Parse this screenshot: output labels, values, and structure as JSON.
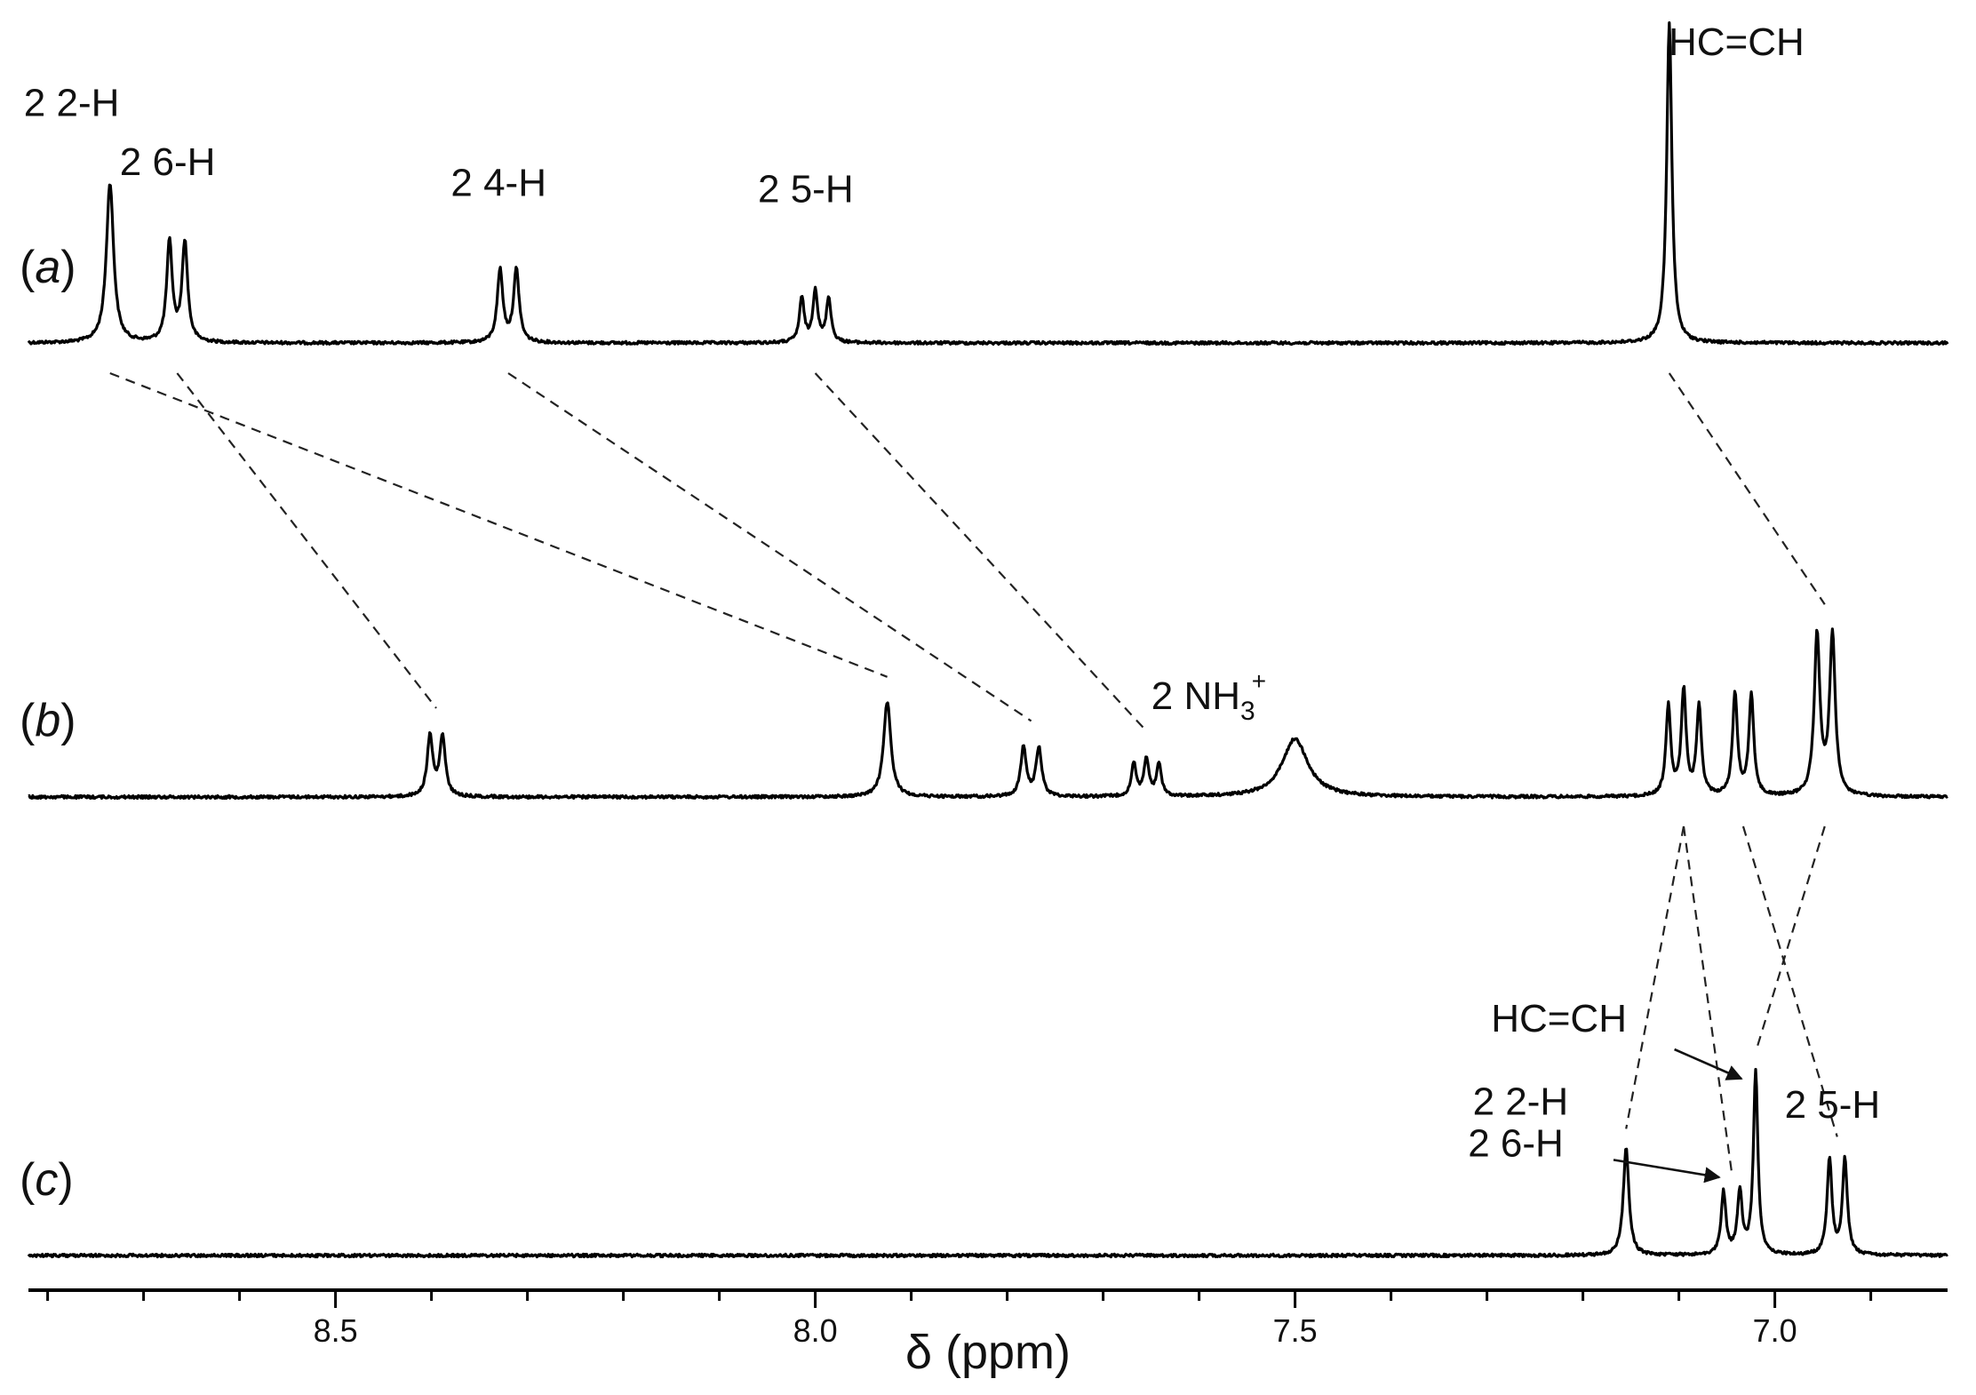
{
  "chart_data": {
    "type": "line",
    "title": "",
    "xlabel": "δ (ppm)",
    "xlim": [
      8.82,
      6.82
    ],
    "x_reversed": true,
    "ticks_major": [
      8.5,
      8.0,
      7.5,
      7.0
    ],
    "tick_labels": [
      "8.5",
      "8.0",
      "7.5",
      "7.0"
    ],
    "panels": [
      {
        "label": "(a)",
        "label_text": "a",
        "peaks": [
          {
            "delta": 8.735,
            "height": 1.0,
            "width": 0.0045,
            "mult": 1,
            "j": 0
          },
          {
            "delta": 8.665,
            "height": 0.65,
            "width": 0.0035,
            "mult": 2,
            "j": 0.016
          },
          {
            "delta": 8.32,
            "height": 0.47,
            "width": 0.0035,
            "mult": 2,
            "j": 0.017
          },
          {
            "delta": 8.0,
            "height": 0.35,
            "width": 0.003,
            "mult": 3,
            "j": 0.014
          },
          {
            "delta": 7.11,
            "height": 2.0,
            "width": 0.0032,
            "mult": 1,
            "j": 0
          }
        ],
        "annotations": [
          {
            "text": "2 2-H",
            "delta": 8.775,
            "rel_y": 1.42
          },
          {
            "text": "2 6-H",
            "delta": 8.675,
            "rel_y": 1.05
          },
          {
            "text": "2 4-H",
            "delta": 8.33,
            "rel_y": 0.92
          },
          {
            "text": "2 5-H",
            "delta": 8.01,
            "rel_y": 0.88
          },
          {
            "text": "HC=CH",
            "delta": 7.04,
            "rel_y": 1.8
          }
        ]
      },
      {
        "label": "(b)",
        "label_text": "b",
        "peaks": [
          {
            "delta": 8.395,
            "height": 0.45,
            "width": 0.0035,
            "mult": 2,
            "j": 0.013
          },
          {
            "delta": 7.925,
            "height": 0.67,
            "width": 0.0045,
            "mult": 1,
            "j": 0
          },
          {
            "delta": 7.775,
            "height": 0.36,
            "width": 0.0035,
            "mult": 2,
            "j": 0.016
          },
          {
            "delta": 7.655,
            "height": 0.29,
            "width": 0.003,
            "mult": 3,
            "j": 0.013
          },
          {
            "delta": 7.5,
            "height": 0.41,
            "width": 0.016,
            "mult": 1,
            "j": 0
          },
          {
            "delta": 7.095,
            "height": 0.78,
            "width": 0.003,
            "mult": 3,
            "j": 0.016
          },
          {
            "delta": 7.033,
            "height": 0.74,
            "width": 0.003,
            "mult": 2,
            "j": 0.017
          },
          {
            "delta": 6.948,
            "height": 1.18,
            "width": 0.0035,
            "mult": 2,
            "j": 0.016
          }
        ],
        "annotations": [
          {
            "text": "2 NH",
            "sub": "3",
            "sup": "+",
            "delta": 7.59,
            "rel_y": 0.62
          }
        ]
      },
      {
        "label": "(c)",
        "label_text": "c",
        "peaks": [
          {
            "delta": 7.155,
            "height": 0.67,
            "width": 0.0035,
            "mult": 1,
            "j": 0
          },
          {
            "delta": 7.045,
            "height": 0.4,
            "width": 0.003,
            "mult": 2,
            "j": 0.017
          },
          {
            "delta": 7.02,
            "height": 1.15,
            "width": 0.0028,
            "mult": 1,
            "j": 0
          },
          {
            "delta": 6.935,
            "height": 0.62,
            "width": 0.003,
            "mult": 2,
            "j": 0.016
          }
        ],
        "annotations": [
          {
            "text": "HC=CH",
            "delta": 7.225,
            "rel_y": 1.4
          },
          {
            "text": "2 2-H",
            "delta": 7.265,
            "rel_y": 0.88
          },
          {
            "text": "2 6-H",
            "delta": 7.27,
            "rel_y": 0.62
          },
          {
            "text": "2 5-H",
            "delta": 6.94,
            "rel_y": 0.86
          }
        ]
      }
    ],
    "correlations": [
      {
        "from_panel": 0,
        "from_delta": 8.735,
        "to_panel": 1,
        "to_delta": 7.925
      },
      {
        "from_panel": 0,
        "from_delta": 8.665,
        "to_panel": 1,
        "to_delta": 8.395
      },
      {
        "from_panel": 0,
        "from_delta": 8.32,
        "to_panel": 1,
        "to_delta": 7.775
      },
      {
        "from_panel": 0,
        "from_delta": 8.0,
        "to_panel": 1,
        "to_delta": 7.655
      },
      {
        "from_panel": 0,
        "from_delta": 7.11,
        "to_panel": 1,
        "to_delta": 6.948
      },
      {
        "from_panel": 1,
        "from_delta": 7.095,
        "to_panel": 2,
        "to_delta": 7.155
      },
      {
        "from_panel": 1,
        "from_delta": 7.095,
        "to_panel": 2,
        "to_delta": 7.045
      },
      {
        "from_panel": 1,
        "from_delta": 7.033,
        "to_panel": 2,
        "to_delta": 6.935
      },
      {
        "from_panel": 1,
        "from_delta": 6.948,
        "to_panel": 2,
        "to_delta": 7.02
      }
    ],
    "grid": false,
    "legend": "none"
  }
}
